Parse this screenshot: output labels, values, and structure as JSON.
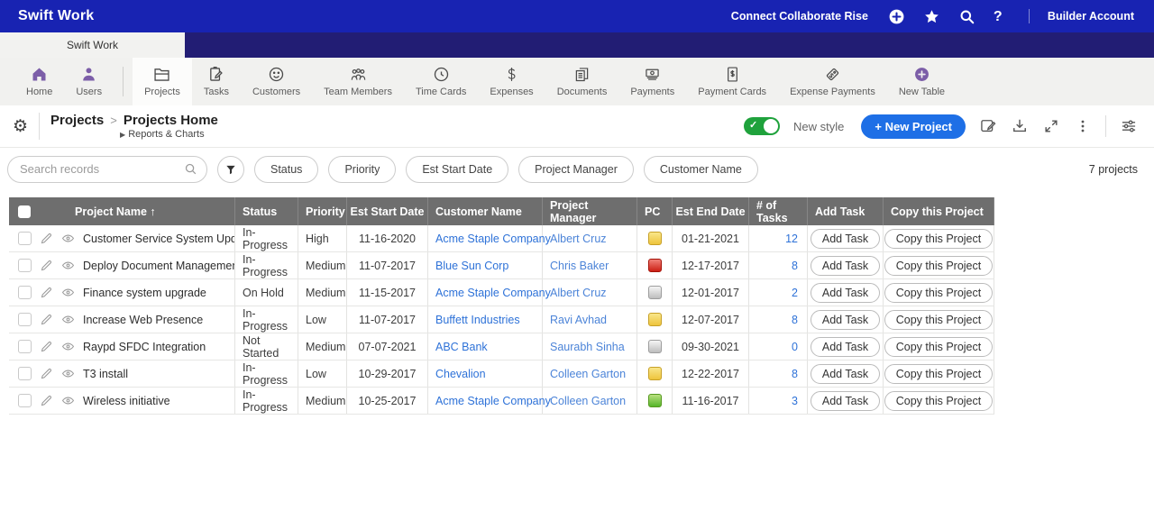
{
  "topbar": {
    "brand": "Swift Work",
    "tagline": "Connect Collaborate Rise",
    "account": "Builder Account",
    "icons": [
      "add-icon",
      "star-icon",
      "search-icon",
      "help-icon"
    ]
  },
  "app_tab": {
    "label": "Swift Work"
  },
  "toolbar": {
    "items": [
      {
        "label": "Home",
        "icon": "home-icon"
      },
      {
        "label": "Users",
        "icon": "users-icon"
      },
      {
        "divider": true
      },
      {
        "label": "Projects",
        "icon": "folder-icon",
        "selected": true
      },
      {
        "label": "Tasks",
        "icon": "clipboard-pencil-icon"
      },
      {
        "label": "Customers",
        "icon": "smiley-icon"
      },
      {
        "label": "Team Members",
        "icon": "people-group-icon"
      },
      {
        "label": "Time Cards",
        "icon": "clock-icon"
      },
      {
        "label": "Expenses",
        "icon": "dollar-icon"
      },
      {
        "label": "Documents",
        "icon": "pages-icon"
      },
      {
        "label": "Payments",
        "icon": "banknote-icon"
      },
      {
        "label": "Payment Cards",
        "icon": "dollar-document-icon"
      },
      {
        "label": "Expense Payments",
        "icon": "price-tag-icon"
      },
      {
        "label": "New Table",
        "icon": "plus-circle-icon"
      }
    ]
  },
  "page_header": {
    "breadcrumb_root": "Projects",
    "breadcrumb_separator": ">",
    "breadcrumb_current": "Projects Home",
    "reports_link": "Reports & Charts",
    "toggle_label": "New style",
    "new_button_label": "+ New Project"
  },
  "filter_bar": {
    "search_placeholder": "Search records",
    "chips": [
      "Status",
      "Priority",
      "Est Start Date",
      "Project Manager",
      "Customer Name"
    ],
    "record_count": "7 projects"
  },
  "table": {
    "columns": [
      "Project Name ↑",
      "Status",
      "Priority",
      "Est Start Date",
      "Customer Name",
      "Project Manager",
      "PC",
      "Est End Date",
      "# of Tasks",
      "Add Task",
      "Copy this Project"
    ],
    "add_task_label": "Add Task",
    "copy_label": "Copy this Project",
    "rows": [
      {
        "name": "Customer Service System Update",
        "status": "In-Progress",
        "priority": "High",
        "est_start": "11-16-2020",
        "customer": "Acme Staple Company",
        "pm": "Albert Cruz",
        "pc": "yellow",
        "est_end": "01-21-2021",
        "tasks": "12"
      },
      {
        "name": "Deploy Document Management",
        "status": "In-Progress",
        "priority": "Medium",
        "est_start": "11-07-2017",
        "customer": "Blue Sun Corp",
        "pm": "Chris Baker",
        "pc": "red",
        "est_end": "12-17-2017",
        "tasks": "8"
      },
      {
        "name": "Finance system upgrade",
        "status": "On Hold",
        "priority": "Medium",
        "est_start": "11-15-2017",
        "customer": "Acme Staple Company",
        "pm": "Albert Cruz",
        "pc": "gray",
        "est_end": "12-01-2017",
        "tasks": "2"
      },
      {
        "name": "Increase Web Presence",
        "status": "In-Progress",
        "priority": "Low",
        "est_start": "11-07-2017",
        "customer": "Buffett Industries",
        "pm": "Ravi Avhad",
        "pc": "yellow",
        "est_end": "12-07-2017",
        "tasks": "8"
      },
      {
        "name": "Raypd SFDC Integration",
        "status": "Not Started",
        "priority": "Medium",
        "est_start": "07-07-2021",
        "customer": "ABC Bank",
        "pm": "Saurabh Sinha",
        "pc": "gray",
        "est_end": "09-30-2021",
        "tasks": "0"
      },
      {
        "name": "T3 install",
        "status": "In-Progress",
        "priority": "Low",
        "est_start": "10-29-2017",
        "customer": "Chevalion",
        "pm": "Colleen Garton",
        "pc": "yellow",
        "est_end": "12-22-2017",
        "tasks": "8"
      },
      {
        "name": "Wireless initiative",
        "status": "In-Progress",
        "priority": "Medium",
        "est_start": "10-25-2017",
        "customer": "Acme Staple Company",
        "pm": "Colleen Garton",
        "pc": "green",
        "est_end": "11-16-2017",
        "tasks": "3"
      }
    ]
  },
  "colors": {
    "topbar_blue": "#1823b2",
    "tabstrip_navy": "#221d74",
    "accent_purple": "#7c5ea8",
    "header_gray": "#6e6e6e",
    "link_blue": "#2e72d8",
    "button_blue": "#1e6fe6",
    "toggle_green": "#1fa23c",
    "pc_yellow": "#eec43c",
    "pc_red": "#cc1f14",
    "pc_gray": "#bdbdbd",
    "pc_green": "#55b529"
  }
}
